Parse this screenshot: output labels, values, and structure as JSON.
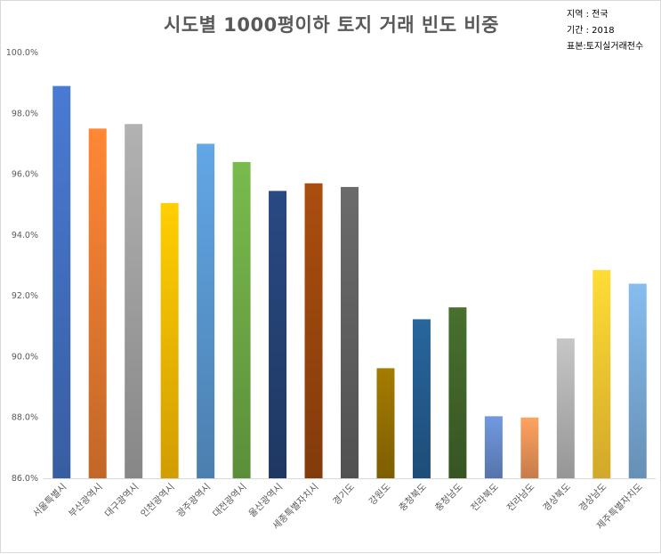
{
  "chart_data": {
    "type": "bar",
    "title": "시도별 1000평이하 토지 거래 빈도 비중",
    "annotations": [
      "지역 : 전국",
      "기간 : 2018",
      "표본:토지실거래전수"
    ],
    "categories": [
      "서울특별시",
      "부산광역시",
      "대구광역시",
      "인천광역시",
      "광주광역시",
      "대전광역시",
      "울산광역시",
      "세종특별자치시",
      "경기도",
      "강원도",
      "충청북도",
      "충청남도",
      "전라북도",
      "전라남도",
      "경상북도",
      "경상남도",
      "제주특별자치도"
    ],
    "values": [
      98.9,
      97.5,
      97.65,
      95.05,
      97.0,
      96.4,
      95.45,
      95.7,
      95.58,
      89.62,
      91.23,
      91.62,
      88.04,
      88.0,
      90.6,
      92.85,
      92.4
    ],
    "colors": [
      "#4472C4",
      "#ED7D31",
      "#A5A5A5",
      "#FFC000",
      "#5B9BD5",
      "#70AD47",
      "#264478",
      "#9E480E",
      "#636363",
      "#997300",
      "#255E91",
      "#43682B",
      "#698ED0",
      "#F1975A",
      "#B7B7B7",
      "#FFCD33",
      "#7CAFDD"
    ],
    "yticks": [
      "86.0%",
      "88.0%",
      "90.0%",
      "92.0%",
      "94.0%",
      "96.0%",
      "98.0%",
      "100.0%"
    ],
    "ylim": [
      86,
      100
    ],
    "grid": false,
    "legend": "none"
  }
}
